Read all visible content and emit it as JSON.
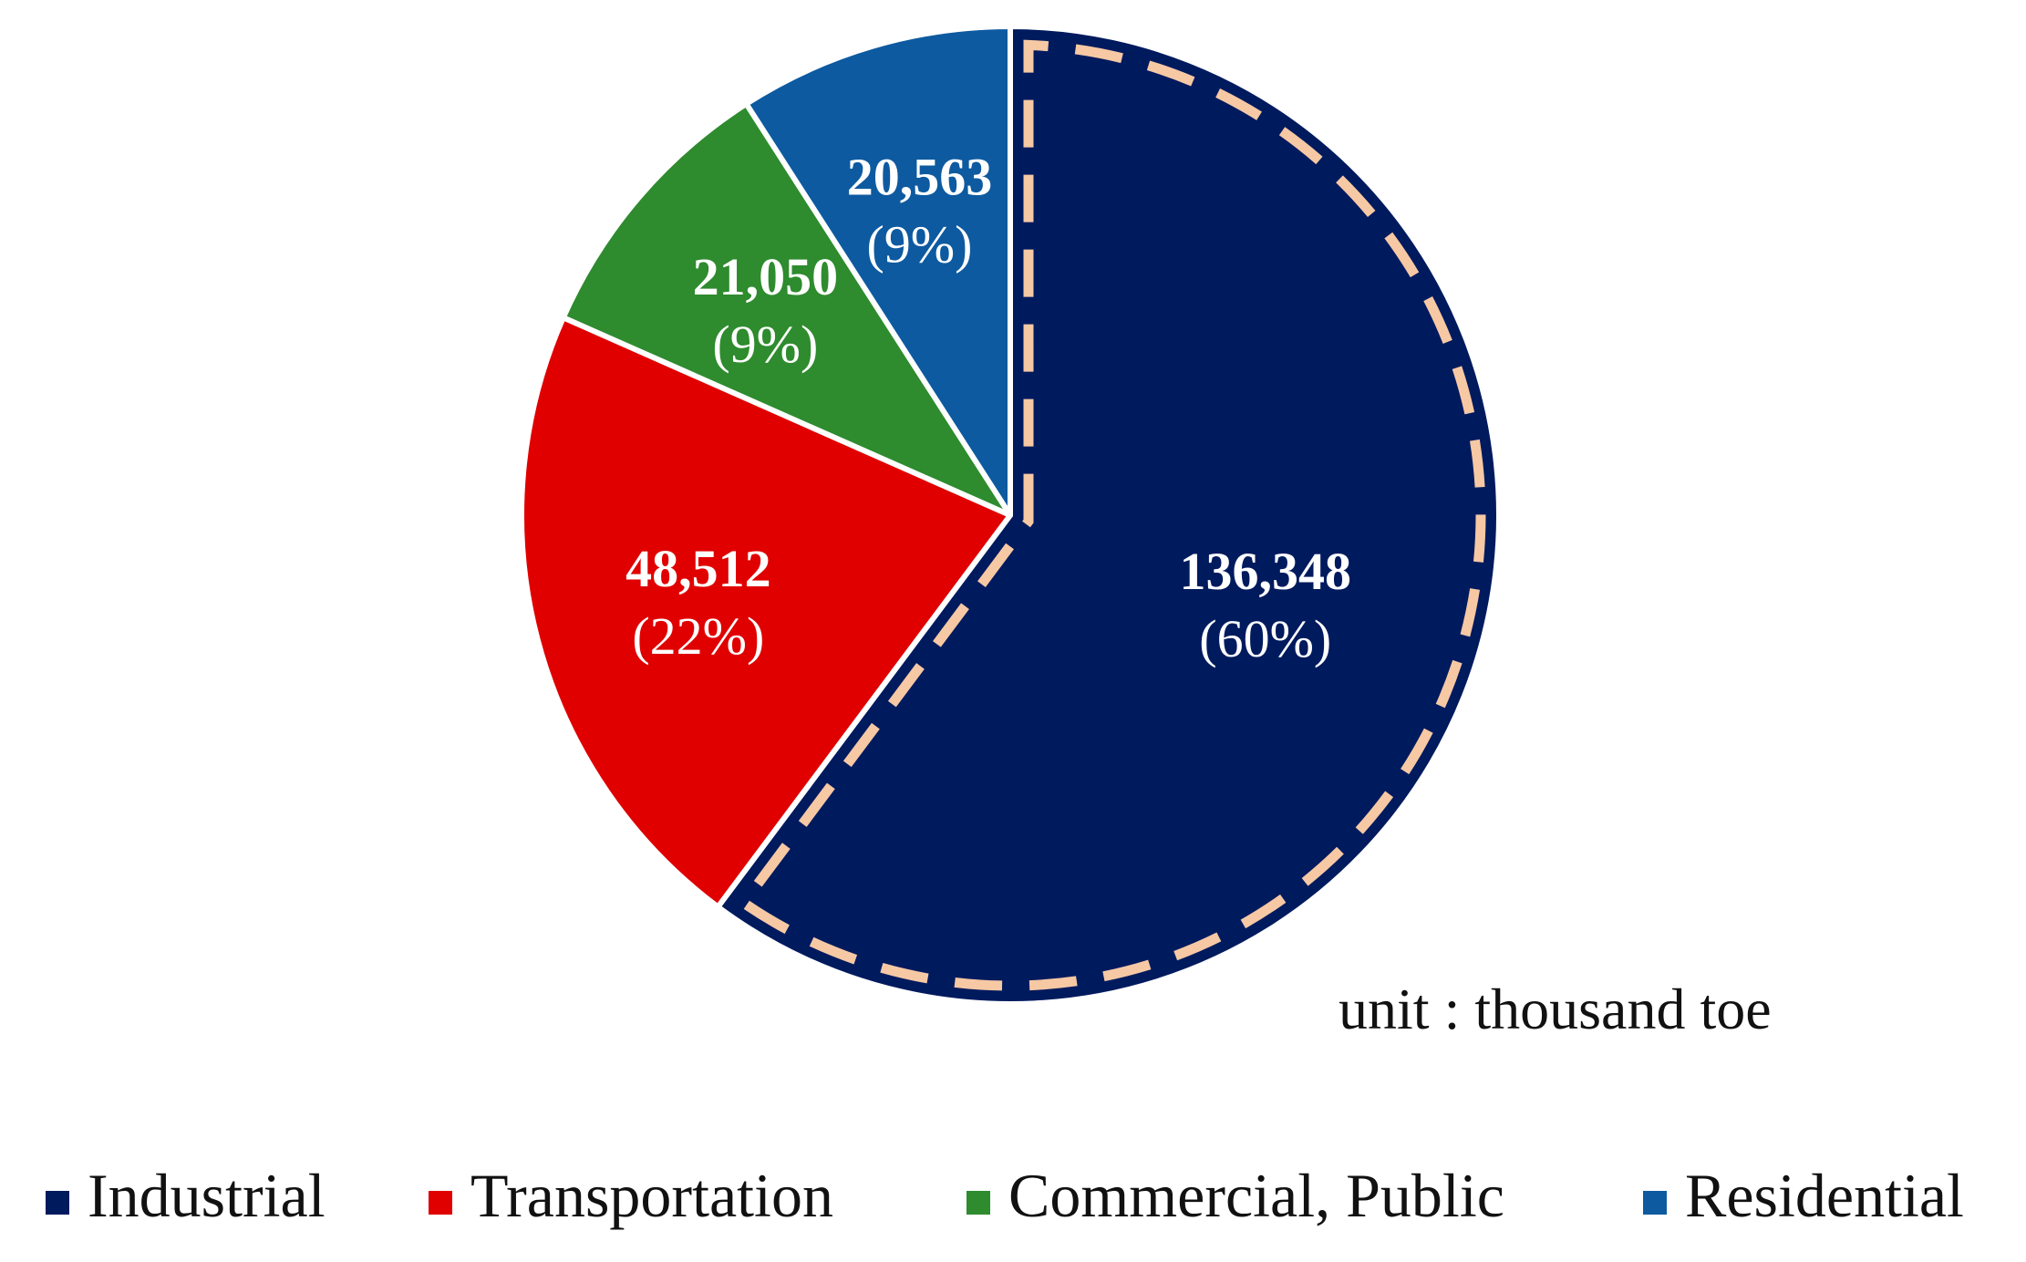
{
  "chart_data": {
    "type": "pie",
    "unit_note": "unit : thousand toe",
    "slices": [
      {
        "name": "Industrial",
        "value": 136348,
        "value_label": "136,348",
        "percent_label": "(60%)",
        "color": "#001a5e"
      },
      {
        "name": "Transportation",
        "value": 48512,
        "value_label": "48,512",
        "percent_label": "(22%)",
        "color": "#e00000"
      },
      {
        "name": "Commercial, Public",
        "value": 21050,
        "value_label": "21,050",
        "percent_label": "(9%)",
        "color": "#2e8b2e"
      },
      {
        "name": "Residential",
        "value": 20563,
        "value_label": "20,563",
        "percent_label": "(9%)",
        "color": "#0d5aa0"
      }
    ],
    "start": "12 o'clock",
    "direction": "clockwise",
    "highlighted_slice": "Industrial",
    "highlight_color": "#f6c8a4",
    "legend_position": "bottom"
  }
}
